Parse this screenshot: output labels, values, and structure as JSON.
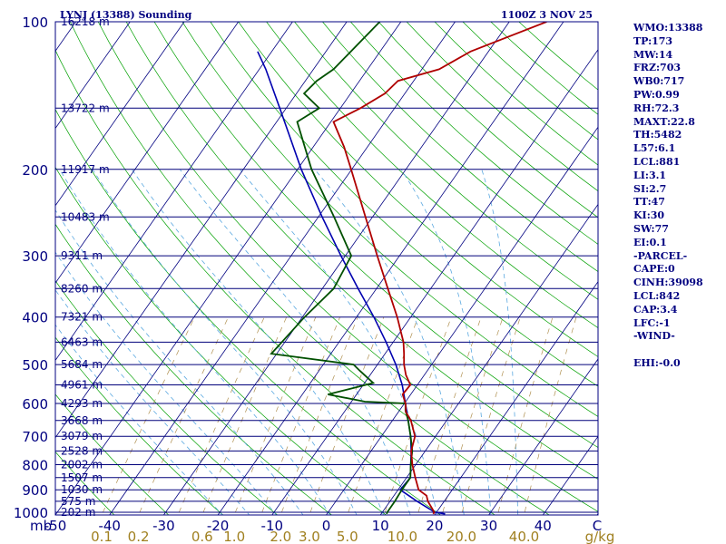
{
  "colors": {
    "frame": "#000080",
    "isobar": "#00007a",
    "isotherm": "#000080",
    "dry_adiabat": "#00a000",
    "moist_adiabat": "#5aa8e0",
    "mixing_ratio": "#b09050",
    "temperature": "#b00000",
    "dewpoint": "#005000",
    "parcel": "#0000b0"
  },
  "chart_data": {
    "type": "skew-t",
    "station": "LYNJ (13388) Sounding",
    "valid_time": "1100Z  3 NOV 25",
    "pressure_unit": "mb",
    "pressure_ticks": [
      "100",
      "200",
      "300",
      "400",
      "500",
      "600",
      "700",
      "800",
      "900",
      "1000"
    ],
    "pressure_levels": [
      100,
      200,
      300,
      400,
      500,
      600,
      700,
      800,
      900,
      1000
    ],
    "height_levels": [
      {
        "p": 100,
        "label": "16218 m"
      },
      {
        "p": 150,
        "label": "13722 m"
      },
      {
        "p": 200,
        "label": "11917 m"
      },
      {
        "p": 250,
        "label": "10483 m"
      },
      {
        "p": 300,
        "label": "9311 m"
      },
      {
        "p": 350,
        "label": "8260 m"
      },
      {
        "p": 400,
        "label": "7321 m"
      },
      {
        "p": 450,
        "label": "6463 m"
      },
      {
        "p": 500,
        "label": "5684 m"
      },
      {
        "p": 550,
        "label": "4961 m"
      },
      {
        "p": 600,
        "label": "4293 m"
      },
      {
        "p": 650,
        "label": "3668 m"
      },
      {
        "p": 700,
        "label": "3079 m"
      },
      {
        "p": 750,
        "label": "2528 m"
      },
      {
        "p": 800,
        "label": "2002 m"
      },
      {
        "p": 850,
        "label": "1507 m"
      },
      {
        "p": 900,
        "label": "1030 m"
      },
      {
        "p": 950,
        "label": "575 m"
      },
      {
        "p": 1000,
        "label": "202 m"
      }
    ],
    "temperature_ticks": [
      {
        "t": -50,
        "label": "-50"
      },
      {
        "t": -40,
        "label": "-40"
      },
      {
        "t": -30,
        "label": "-30"
      },
      {
        "t": -20,
        "label": "-20"
      },
      {
        "t": -10,
        "label": "-10"
      },
      {
        "t": 0,
        "label": "0"
      },
      {
        "t": 10,
        "label": "10"
      },
      {
        "t": 20,
        "label": "20"
      },
      {
        "t": 30,
        "label": "30"
      },
      {
        "t": 40,
        "label": "40"
      },
      {
        "t": 50,
        "label": "C"
      }
    ],
    "mixing_ratio_ticks": [
      {
        "w": 0.1,
        "label": "0.1"
      },
      {
        "w": 0.2,
        "label": "0.2"
      },
      {
        "w": 0.6,
        "label": "0.6"
      },
      {
        "w": 1.0,
        "label": "1.0"
      },
      {
        "w": 2.0,
        "label": "2.0"
      },
      {
        "w": 3.0,
        "label": "3.0"
      },
      {
        "w": 5.0,
        "label": "5.0"
      },
      {
        "w": 10.0,
        "label": "10.0"
      },
      {
        "w": 20.0,
        "label": "20.0"
      },
      {
        "w": 40.0,
        "label": "40.0"
      }
    ],
    "mixing_ratio_unit": "g/kg",
    "temperature_profile": [
      {
        "p": 1008,
        "t": 19.6
      },
      {
        "p": 1000,
        "t": 19.6
      },
      {
        "p": 950,
        "t": 17.0
      },
      {
        "p": 925,
        "t": 16.0
      },
      {
        "p": 900,
        "t": 13.8
      },
      {
        "p": 850,
        "t": 11.6
      },
      {
        "p": 800,
        "t": 9.4
      },
      {
        "p": 750,
        "t": 7.4
      },
      {
        "p": 700,
        "t": 6.2
      },
      {
        "p": 650,
        "t": 3.4
      },
      {
        "p": 625,
        "t": 1.4
      },
      {
        "p": 600,
        "t": 0.2
      },
      {
        "p": 575,
        "t": -1.5
      },
      {
        "p": 550,
        "t": -1.3
      },
      {
        "p": 525,
        "t": -3.4
      },
      {
        "p": 500,
        "t": -5.1
      },
      {
        "p": 475,
        "t": -6.5
      },
      {
        "p": 450,
        "t": -8.1
      },
      {
        "p": 400,
        "t": -12.5
      },
      {
        "p": 350,
        "t": -17.9
      },
      {
        "p": 300,
        "t": -24.1
      },
      {
        "p": 250,
        "t": -31.3
      },
      {
        "p": 200,
        "t": -40.1
      },
      {
        "p": 180,
        "t": -44.3
      },
      {
        "p": 160,
        "t": -49.5
      },
      {
        "p": 150,
        "t": -46.3
      },
      {
        "p": 140,
        "t": -43.7
      },
      {
        "p": 132,
        "t": -42.9
      },
      {
        "p": 125,
        "t": -36.8
      },
      {
        "p": 115,
        "t": -33.3
      },
      {
        "p": 100,
        "t": -23.1
      }
    ],
    "dewpoint_profile": [
      {
        "p": 1008,
        "t": 11.0
      },
      {
        "p": 1000,
        "t": 10.9
      },
      {
        "p": 950,
        "t": 10.9
      },
      {
        "p": 900,
        "t": 10.7
      },
      {
        "p": 850,
        "t": 10.7
      },
      {
        "p": 800,
        "t": 9.1
      },
      {
        "p": 750,
        "t": 7.6
      },
      {
        "p": 700,
        "t": 5.4
      },
      {
        "p": 650,
        "t": 2.9
      },
      {
        "p": 620,
        "t": 1.1
      },
      {
        "p": 600,
        "t": 0.2
      },
      {
        "p": 595,
        "t": -7.5
      },
      {
        "p": 575,
        "t": -15.3
      },
      {
        "p": 545,
        "t": -8.4
      },
      {
        "p": 515,
        "t": -12.4
      },
      {
        "p": 500,
        "t": -14.4
      },
      {
        "p": 475,
        "t": -31.0
      },
      {
        "p": 400,
        "t": -29.6
      },
      {
        "p": 350,
        "t": -27.9
      },
      {
        "p": 300,
        "t": -28.9
      },
      {
        "p": 250,
        "t": -37.1
      },
      {
        "p": 200,
        "t": -47.4
      },
      {
        "p": 160,
        "t": -56.2
      },
      {
        "p": 150,
        "t": -53.9
      },
      {
        "p": 140,
        "t": -58.6
      },
      {
        "p": 132,
        "t": -57.9
      },
      {
        "p": 125,
        "t": -56.3
      },
      {
        "p": 100,
        "t": -53.9
      }
    ],
    "parcel_profile": [
      {
        "p": 1008,
        "t": 21.8
      },
      {
        "p": 1000,
        "t": 19.7
      },
      {
        "p": 950,
        "t": 15.0
      },
      {
        "p": 900,
        "t": 10.4
      },
      {
        "p": 850,
        "t": 10.7
      },
      {
        "p": 800,
        "t": 9.1
      },
      {
        "p": 750,
        "t": 7.4
      },
      {
        "p": 700,
        "t": 5.4
      },
      {
        "p": 650,
        "t": 2.9
      },
      {
        "p": 600,
        "t": 0.2
      },
      {
        "p": 550,
        "t": -2.8
      },
      {
        "p": 500,
        "t": -6.6
      },
      {
        "p": 450,
        "t": -11.3
      },
      {
        "p": 400,
        "t": -16.8
      },
      {
        "p": 350,
        "t": -23.4
      },
      {
        "p": 300,
        "t": -30.8
      },
      {
        "p": 250,
        "t": -39.3
      },
      {
        "p": 200,
        "t": -49.3
      },
      {
        "p": 150,
        "t": -61.2
      },
      {
        "p": 125,
        "t": -68.8
      },
      {
        "p": 115,
        "t": -72.6
      }
    ],
    "dry_adiabats_theta_c": [
      -40,
      -30,
      -20,
      -10,
      0,
      10,
      20,
      30,
      40,
      50,
      60,
      70,
      80,
      90,
      100,
      110,
      120,
      130,
      140,
      150,
      160,
      170,
      180,
      190,
      200
    ],
    "moist_adiabats_c": [
      -20,
      -15,
      -10,
      -5,
      0,
      5,
      10,
      15,
      20,
      25,
      30,
      35
    ],
    "mixing_ratio_lines_gkg": [
      0.1,
      0.2,
      0.4,
      0.6,
      1.0,
      1.5,
      2.0,
      3.0,
      5.0,
      8.0,
      12.0,
      16.0,
      20.0,
      30.0,
      40.0
    ]
  },
  "indices": [
    "WMO:13388",
    "TP:173",
    "MW:14",
    "FRZ:703",
    "WB0:717",
    "PW:0.99",
    "RH:72.3",
    "MAXT:22.8",
    "TH:5482",
    "L57:6.1",
    "LCL:881",
    "LI:3.1",
    "SI:2.7",
    "TT:47",
    "KI:30",
    "SW:77",
    "EI:0.1",
    "-PARCEL-",
    "CAPE:0",
    "CINH:39098",
    "LCL:842",
    "CAP:3.4",
    "LFC:-1",
    "-WIND-",
    "",
    "EHI:-0.0"
  ]
}
